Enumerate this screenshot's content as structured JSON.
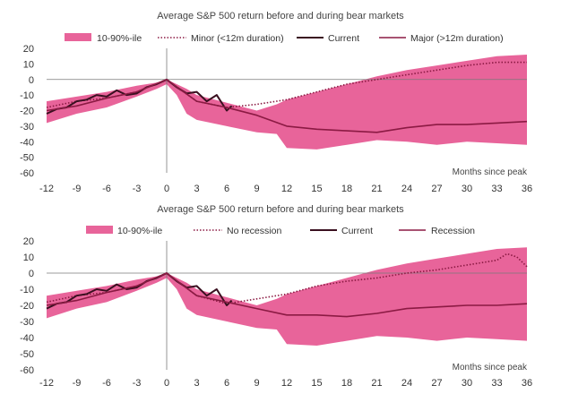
{
  "colors": {
    "band": "#e8649a",
    "zero_line": "#7a7a7a",
    "minor": "#8b1a43",
    "current": "#3a1020",
    "major": "#8b1a43"
  },
  "chart_data": [
    {
      "type": "line",
      "title": "Average S&P 500 return before and during bear markets",
      "xlabel": "Months since peak",
      "ylabel": "",
      "xlim": [
        -12,
        36
      ],
      "ylim": [
        -60,
        20
      ],
      "xticks": [
        "-12",
        "-9",
        "-6",
        "-3",
        "0",
        "3",
        "6",
        "9",
        "12",
        "15",
        "18",
        "21",
        "24",
        "27",
        "30",
        "33",
        "36"
      ],
      "yticks": [
        "20",
        "10",
        "0",
        "-10",
        "-20",
        "-30",
        "-40",
        "-50",
        "-60"
      ],
      "grid": false,
      "legend": {
        "position": "top",
        "items": [
          {
            "key": "band",
            "label": "10-90%-ile"
          },
          {
            "key": "minor",
            "label": "Minor (<12m duration)"
          },
          {
            "key": "current",
            "label": "Current"
          },
          {
            "key": "major",
            "label": "Major (>12m duration)"
          }
        ]
      },
      "band": {
        "name": "10-90%-ile",
        "x": [
          -12,
          -9,
          -6,
          -3,
          -1,
          0,
          1,
          2,
          3,
          6,
          9,
          11,
          12,
          15,
          18,
          21,
          24,
          27,
          30,
          33,
          36
        ],
        "upper": [
          -14,
          -11,
          -8,
          -4,
          -2,
          0,
          -3,
          -6,
          -10,
          -15,
          -20,
          -16,
          -13,
          -8,
          -3,
          2,
          6,
          9,
          12,
          15,
          16
        ],
        "lower": [
          -28,
          -22,
          -18,
          -11,
          -6,
          -3,
          -10,
          -22,
          -26,
          -30,
          -34,
          -35,
          -44,
          -45,
          -42,
          -39,
          -40,
          -42,
          -40,
          -41,
          -42
        ]
      },
      "series": [
        {
          "key": "minor",
          "name": "Minor (<12m duration)",
          "style": "dotted",
          "x": [
            -12,
            -9,
            -6,
            -3,
            0,
            3,
            6,
            9,
            12,
            15,
            18,
            21,
            24,
            27,
            30,
            33,
            36
          ],
          "y": [
            -18,
            -14,
            -12,
            -8,
            0,
            -14,
            -18,
            -16,
            -13,
            -8,
            -3,
            0,
            3,
            6,
            9,
            11,
            11
          ]
        },
        {
          "key": "current",
          "name": "Current",
          "style": "solid",
          "x": [
            -12,
            -11,
            -10,
            -9,
            -8,
            -7,
            -6,
            -5,
            -4,
            -3,
            -2,
            -1,
            0,
            1,
            2,
            3,
            4,
            5,
            6,
            6.5
          ],
          "y": [
            -22,
            -19,
            -18,
            -14,
            -13,
            -10,
            -11,
            -7,
            -10,
            -9,
            -5,
            -3,
            0,
            -5,
            -9,
            -8,
            -14,
            -10,
            -20,
            -17
          ]
        },
        {
          "key": "major",
          "name": "Major (>12m duration)",
          "style": "solid",
          "x": [
            -12,
            -9,
            -6,
            -3,
            0,
            3,
            6,
            9,
            12,
            15,
            18,
            21,
            24,
            27,
            30,
            33,
            36
          ],
          "y": [
            -20,
            -17,
            -12,
            -8,
            0,
            -14,
            -18,
            -23,
            -30,
            -32,
            -33,
            -34,
            -31,
            -29,
            -29,
            -28,
            -27
          ]
        }
      ]
    },
    {
      "type": "line",
      "title": "Average S&P 500 return before and during bear markets",
      "xlabel": "Months since peak",
      "ylabel": "",
      "xlim": [
        -12,
        36
      ],
      "ylim": [
        -60,
        20
      ],
      "xticks": [
        "-12",
        "-9",
        "-6",
        "-3",
        "0",
        "3",
        "6",
        "9",
        "12",
        "15",
        "18",
        "21",
        "24",
        "27",
        "30",
        "33",
        "36"
      ],
      "yticks": [
        "20",
        "10",
        "0",
        "-10",
        "-20",
        "-30",
        "-40",
        "-50",
        "-60"
      ],
      "grid": false,
      "legend": {
        "position": "top",
        "items": [
          {
            "key": "band",
            "label": "10-90%-ile"
          },
          {
            "key": "minor",
            "label": "No recession"
          },
          {
            "key": "current",
            "label": "Current"
          },
          {
            "key": "major",
            "label": "Recession"
          }
        ]
      },
      "band": {
        "name": "10-90%-ile",
        "x": [
          -12,
          -9,
          -6,
          -3,
          -1,
          0,
          1,
          2,
          3,
          6,
          9,
          11,
          12,
          15,
          18,
          21,
          24,
          27,
          30,
          33,
          36
        ],
        "upper": [
          -14,
          -11,
          -8,
          -4,
          -2,
          0,
          -3,
          -6,
          -10,
          -15,
          -20,
          -16,
          -13,
          -8,
          -3,
          2,
          6,
          9,
          12,
          15,
          16
        ],
        "lower": [
          -28,
          -22,
          -18,
          -11,
          -6,
          -3,
          -10,
          -22,
          -26,
          -30,
          -34,
          -35,
          -44,
          -45,
          -42,
          -39,
          -40,
          -42,
          -40,
          -41,
          -42
        ]
      },
      "series": [
        {
          "key": "minor",
          "name": "No recession",
          "style": "dotted",
          "x": [
            -12,
            -9,
            -6,
            -3,
            0,
            3,
            6,
            9,
            12,
            15,
            18,
            21,
            24,
            27,
            30,
            33,
            34,
            35,
            36
          ],
          "y": [
            -18,
            -14,
            -12,
            -8,
            0,
            -14,
            -19,
            -16,
            -13,
            -8,
            -5,
            -3,
            0,
            2,
            5,
            8,
            12,
            10,
            4
          ]
        },
        {
          "key": "current",
          "name": "Current",
          "style": "solid",
          "x": [
            -12,
            -11,
            -10,
            -9,
            -8,
            -7,
            -6,
            -5,
            -4,
            -3,
            -2,
            -1,
            0,
            1,
            2,
            3,
            4,
            5,
            6,
            6.5
          ],
          "y": [
            -22,
            -19,
            -18,
            -14,
            -13,
            -10,
            -11,
            -7,
            -10,
            -9,
            -5,
            -3,
            0,
            -5,
            -9,
            -8,
            -14,
            -10,
            -20,
            -17
          ]
        },
        {
          "key": "major",
          "name": "Recession",
          "style": "solid",
          "x": [
            -12,
            -9,
            -6,
            -3,
            0,
            3,
            6,
            9,
            12,
            15,
            18,
            21,
            24,
            27,
            30,
            33,
            36
          ],
          "y": [
            -20,
            -17,
            -12,
            -8,
            0,
            -14,
            -18,
            -22,
            -26,
            -26,
            -27,
            -25,
            -22,
            -21,
            -20,
            -20,
            -19
          ]
        }
      ]
    }
  ]
}
